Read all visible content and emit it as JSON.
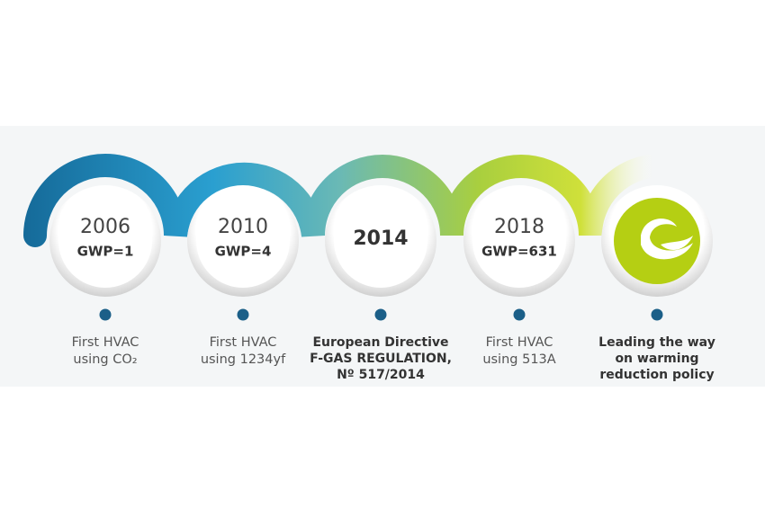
{
  "milestones": [
    {
      "year": "2006",
      "gwp": "GWP=1",
      "caption": [
        "First HVAC",
        "using CO₂"
      ]
    },
    {
      "year": "2010",
      "gwp": "GWP=4",
      "caption": [
        "First HVAC",
        "using 1234yf"
      ]
    },
    {
      "year": "2014",
      "caption": [
        "European Directive",
        "F-GAS REGULATION,",
        "Nº 517/2014"
      ]
    },
    {
      "year": "2018",
      "gwp": "GWP=631",
      "caption": [
        "First HVAC",
        "using 513A"
      ]
    },
    {
      "caption": [
        "Leading the way",
        "on warming",
        "reduction policy"
      ]
    }
  ]
}
